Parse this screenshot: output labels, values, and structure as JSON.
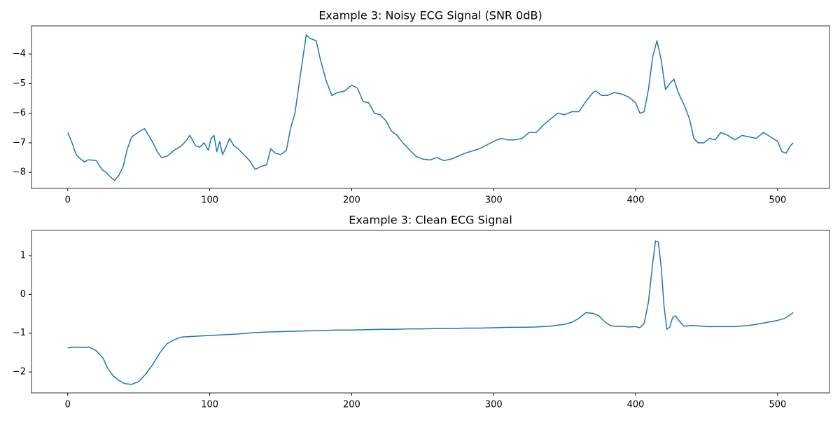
{
  "chart_data": [
    {
      "type": "line",
      "title": "Example 3: Noisy ECG Signal (SNR 0dB)",
      "x": [
        0,
        3,
        6,
        9,
        12,
        14,
        16,
        20,
        24,
        27,
        30,
        33,
        36,
        39,
        42,
        45,
        48,
        51,
        54,
        57,
        60,
        63,
        66,
        70,
        75,
        80,
        83,
        86,
        90,
        93,
        96,
        99,
        101,
        103,
        105,
        107,
        109,
        111,
        114,
        117,
        120,
        124,
        128,
        132,
        136,
        140,
        143,
        146,
        150,
        154,
        157,
        160,
        163,
        166,
        168,
        170,
        172,
        175,
        178,
        182,
        186,
        190,
        195,
        200,
        204,
        208,
        212,
        216,
        220,
        224,
        228,
        232,
        236,
        240,
        245,
        250,
        255,
        260,
        265,
        270,
        275,
        280,
        290,
        300,
        305,
        310,
        315,
        320,
        325,
        330,
        335,
        340,
        345,
        350,
        355,
        360,
        365,
        370,
        372,
        376,
        380,
        385,
        390,
        395,
        400,
        403,
        406,
        409,
        412,
        415,
        418,
        421,
        424,
        427,
        430,
        434,
        438,
        441,
        444,
        448,
        452,
        456,
        460,
        465,
        470,
        475,
        480,
        485,
        490,
        495,
        500,
        503,
        506,
        509,
        511
      ],
      "series": [
        {
          "color": "#1f77b4",
          "values": [
            -6.65,
            -7.0,
            -7.4,
            -7.55,
            -7.65,
            -7.58,
            -7.58,
            -7.6,
            -7.9,
            -8.0,
            -8.15,
            -8.27,
            -8.1,
            -7.8,
            -7.2,
            -6.8,
            -6.7,
            -6.6,
            -6.52,
            -6.75,
            -7.0,
            -7.3,
            -7.5,
            -7.45,
            -7.25,
            -7.1,
            -6.95,
            -6.75,
            -7.1,
            -7.15,
            -7.0,
            -7.25,
            -6.85,
            -6.75,
            -7.3,
            -6.95,
            -7.4,
            -7.2,
            -6.85,
            -7.1,
            -7.2,
            -7.4,
            -7.6,
            -7.9,
            -7.8,
            -7.75,
            -7.2,
            -7.35,
            -7.4,
            -7.25,
            -6.5,
            -6.0,
            -5.0,
            -4.0,
            -3.35,
            -3.45,
            -3.5,
            -3.55,
            -4.2,
            -4.9,
            -5.4,
            -5.3,
            -5.25,
            -5.05,
            -5.15,
            -5.6,
            -5.65,
            -6.0,
            -6.05,
            -6.25,
            -6.6,
            -6.75,
            -7.0,
            -7.2,
            -7.45,
            -7.55,
            -7.58,
            -7.5,
            -7.6,
            -7.55,
            -7.45,
            -7.35,
            -7.2,
            -6.95,
            -6.85,
            -6.9,
            -6.9,
            -6.85,
            -6.65,
            -6.65,
            -6.4,
            -6.2,
            -6.0,
            -6.05,
            -5.95,
            -5.95,
            -5.6,
            -5.3,
            -5.25,
            -5.4,
            -5.4,
            -5.3,
            -5.35,
            -5.45,
            -5.65,
            -6.0,
            -5.95,
            -5.2,
            -4.1,
            -3.55,
            -4.2,
            -5.2,
            -5.0,
            -4.85,
            -5.3,
            -5.7,
            -6.2,
            -6.85,
            -7.0,
            -7.0,
            -6.85,
            -6.9,
            -6.65,
            -6.75,
            -6.9,
            -6.75,
            -6.8,
            -6.85,
            -6.65,
            -6.8,
            -6.95,
            -7.3,
            -7.35,
            -7.1,
            -7.0
          ]
        }
      ],
      "xlim": [
        -25.55,
        536.55
      ],
      "xticks": [
        0,
        100,
        200,
        300,
        400,
        500
      ],
      "ylim": [
        -8.54,
        -3.05
      ],
      "yticks": [
        {
          "value": -8,
          "label": "−8"
        },
        {
          "value": -7,
          "label": "−7"
        },
        {
          "value": -6,
          "label": "−6"
        },
        {
          "value": -5,
          "label": "−5"
        },
        {
          "value": -4,
          "label": "−4"
        }
      ]
    },
    {
      "type": "line",
      "title": "Example 3: Clean ECG Signal",
      "x": [
        0,
        5,
        10,
        15,
        20,
        25,
        28,
        32,
        36,
        40,
        45,
        50,
        55,
        60,
        65,
        70,
        75,
        80,
        90,
        100,
        110,
        120,
        130,
        140,
        150,
        160,
        170,
        180,
        190,
        200,
        210,
        220,
        230,
        240,
        250,
        260,
        270,
        280,
        290,
        300,
        310,
        320,
        330,
        340,
        350,
        355,
        360,
        365,
        370,
        374,
        378,
        382,
        386,
        390,
        395,
        400,
        403,
        406,
        409,
        412,
        414,
        416,
        418,
        420,
        422,
        424,
        426,
        428,
        431,
        434,
        440,
        450,
        460,
        470,
        480,
        490,
        500,
        505,
        511
      ],
      "series": [
        {
          "color": "#1f77b4",
          "values": [
            -1.38,
            -1.36,
            -1.37,
            -1.36,
            -1.45,
            -1.65,
            -1.9,
            -2.1,
            -2.22,
            -2.3,
            -2.32,
            -2.25,
            -2.05,
            -1.8,
            -1.5,
            -1.27,
            -1.17,
            -1.1,
            -1.08,
            -1.06,
            -1.04,
            -1.02,
            -0.99,
            -0.97,
            -0.96,
            -0.95,
            -0.94,
            -0.93,
            -0.92,
            -0.92,
            -0.91,
            -0.9,
            -0.9,
            -0.89,
            -0.89,
            -0.88,
            -0.88,
            -0.87,
            -0.87,
            -0.86,
            -0.85,
            -0.85,
            -0.84,
            -0.82,
            -0.77,
            -0.72,
            -0.62,
            -0.47,
            -0.49,
            -0.55,
            -0.7,
            -0.8,
            -0.83,
            -0.82,
            -0.84,
            -0.83,
            -0.86,
            -0.75,
            -0.2,
            0.8,
            1.38,
            1.35,
            0.7,
            -0.3,
            -0.9,
            -0.85,
            -0.6,
            -0.55,
            -0.7,
            -0.82,
            -0.8,
            -0.83,
            -0.83,
            -0.83,
            -0.8,
            -0.74,
            -0.67,
            -0.62,
            -0.47
          ]
        }
      ],
      "xlim": [
        -25.55,
        536.55
      ],
      "xticks": [
        0,
        100,
        200,
        300,
        400,
        500
      ],
      "ylim": [
        -2.54,
        1.65
      ],
      "yticks": [
        {
          "value": -2,
          "label": "−2"
        },
        {
          "value": -1,
          "label": "−1"
        },
        0,
        1
      ]
    }
  ]
}
